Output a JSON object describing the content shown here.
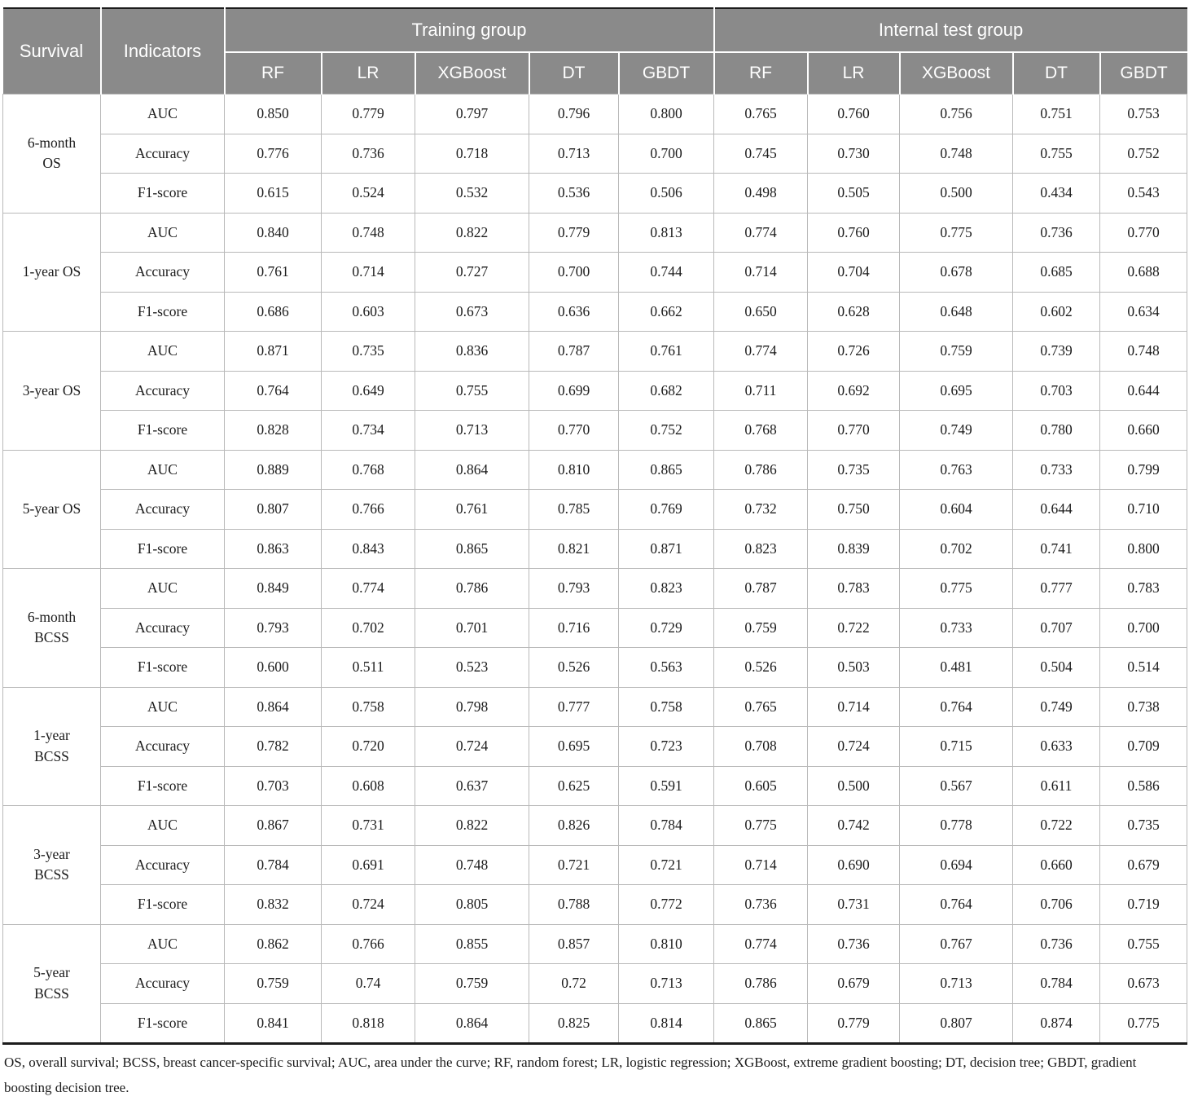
{
  "table": {
    "header": {
      "survival": "Survival",
      "indicators": "Indicators",
      "training_group": "Training group",
      "test_group": "Internal test group",
      "models": [
        "RF",
        "LR",
        "XGBoost",
        "DT",
        "GBDT"
      ]
    },
    "groups": [
      {
        "survival": "6-month\nOS",
        "rows": [
          {
            "indicator": "AUC",
            "training": [
              "0.850",
              "0.779",
              "0.797",
              "0.796",
              "0.800"
            ],
            "test": [
              "0.765",
              "0.760",
              "0.756",
              "0.751",
              "0.753"
            ]
          },
          {
            "indicator": "Accuracy",
            "training": [
              "0.776",
              "0.736",
              "0.718",
              "0.713",
              "0.700"
            ],
            "test": [
              "0.745",
              "0.730",
              "0.748",
              "0.755",
              "0.752"
            ]
          },
          {
            "indicator": "F1-score",
            "training": [
              "0.615",
              "0.524",
              "0.532",
              "0.536",
              "0.506"
            ],
            "test": [
              "0.498",
              "0.505",
              "0.500",
              "0.434",
              "0.543"
            ]
          }
        ]
      },
      {
        "survival": "1-year OS",
        "rows": [
          {
            "indicator": "AUC",
            "training": [
              "0.840",
              "0.748",
              "0.822",
              "0.779",
              "0.813"
            ],
            "test": [
              "0.774",
              "0.760",
              "0.775",
              "0.736",
              "0.770"
            ]
          },
          {
            "indicator": "Accuracy",
            "training": [
              "0.761",
              "0.714",
              "0.727",
              "0.700",
              "0.744"
            ],
            "test": [
              "0.714",
              "0.704",
              "0.678",
              "0.685",
              "0.688"
            ]
          },
          {
            "indicator": "F1-score",
            "training": [
              "0.686",
              "0.603",
              "0.673",
              "0.636",
              "0.662"
            ],
            "test": [
              "0.650",
              "0.628",
              "0.648",
              "0.602",
              "0.634"
            ]
          }
        ]
      },
      {
        "survival": "3-year OS",
        "rows": [
          {
            "indicator": "AUC",
            "training": [
              "0.871",
              "0.735",
              "0.836",
              "0.787",
              "0.761"
            ],
            "test": [
              "0.774",
              "0.726",
              "0.759",
              "0.739",
              "0.748"
            ]
          },
          {
            "indicator": "Accuracy",
            "training": [
              "0.764",
              "0.649",
              "0.755",
              "0.699",
              "0.682"
            ],
            "test": [
              "0.711",
              "0.692",
              "0.695",
              "0.703",
              "0.644"
            ]
          },
          {
            "indicator": "F1-score",
            "training": [
              "0.828",
              "0.734",
              "0.713",
              "0.770",
              "0.752"
            ],
            "test": [
              "0.768",
              "0.770",
              "0.749",
              "0.780",
              "0.660"
            ]
          }
        ]
      },
      {
        "survival": "5-year OS",
        "rows": [
          {
            "indicator": "AUC",
            "training": [
              "0.889",
              "0.768",
              "0.864",
              "0.810",
              "0.865"
            ],
            "test": [
              "0.786",
              "0.735",
              "0.763",
              "0.733",
              "0.799"
            ]
          },
          {
            "indicator": "Accuracy",
            "training": [
              "0.807",
              "0.766",
              "0.761",
              "0.785",
              "0.769"
            ],
            "test": [
              "0.732",
              "0.750",
              "0.604",
              "0.644",
              "0.710"
            ]
          },
          {
            "indicator": "F1-score",
            "training": [
              "0.863",
              "0.843",
              "0.865",
              "0.821",
              "0.871"
            ],
            "test": [
              "0.823",
              "0.839",
              "0.702",
              "0.741",
              "0.800"
            ]
          }
        ]
      },
      {
        "survival": "6-month\nBCSS",
        "rows": [
          {
            "indicator": "AUC",
            "training": [
              "0.849",
              "0.774",
              "0.786",
              "0.793",
              "0.823"
            ],
            "test": [
              "0.787",
              "0.783",
              "0.775",
              "0.777",
              "0.783"
            ]
          },
          {
            "indicator": "Accuracy",
            "training": [
              "0.793",
              "0.702",
              "0.701",
              "0.716",
              "0.729"
            ],
            "test": [
              "0.759",
              "0.722",
              "0.733",
              "0.707",
              "0.700"
            ]
          },
          {
            "indicator": "F1-score",
            "training": [
              "0.600",
              "0.511",
              "0.523",
              "0.526",
              "0.563"
            ],
            "test": [
              "0.526",
              "0.503",
              "0.481",
              "0.504",
              "0.514"
            ]
          }
        ]
      },
      {
        "survival": "1-year\nBCSS",
        "rows": [
          {
            "indicator": "AUC",
            "training": [
              "0.864",
              "0.758",
              "0.798",
              "0.777",
              "0.758"
            ],
            "test": [
              "0.765",
              "0.714",
              "0.764",
              "0.749",
              "0.738"
            ]
          },
          {
            "indicator": "Accuracy",
            "training": [
              "0.782",
              "0.720",
              "0.724",
              "0.695",
              "0.723"
            ],
            "test": [
              "0.708",
              "0.724",
              "0.715",
              "0.633",
              "0.709"
            ]
          },
          {
            "indicator": "F1-score",
            "training": [
              "0.703",
              "0.608",
              "0.637",
              "0.625",
              "0.591"
            ],
            "test": [
              "0.605",
              "0.500",
              "0.567",
              "0.611",
              "0.586"
            ]
          }
        ]
      },
      {
        "survival": "3-year\nBCSS",
        "rows": [
          {
            "indicator": "AUC",
            "training": [
              "0.867",
              "0.731",
              "0.822",
              "0.826",
              "0.784"
            ],
            "test": [
              "0.775",
              "0.742",
              "0.778",
              "0.722",
              "0.735"
            ]
          },
          {
            "indicator": "Accuracy",
            "training": [
              "0.784",
              "0.691",
              "0.748",
              "0.721",
              "0.721"
            ],
            "test": [
              "0.714",
              "0.690",
              "0.694",
              "0.660",
              "0.679"
            ]
          },
          {
            "indicator": "F1-score",
            "training": [
              "0.832",
              "0.724",
              "0.805",
              "0.788",
              "0.772"
            ],
            "test": [
              "0.736",
              "0.731",
              "0.764",
              "0.706",
              "0.719"
            ]
          }
        ]
      },
      {
        "survival": "5-year\nBCSS",
        "rows": [
          {
            "indicator": "AUC",
            "training": [
              "0.862",
              "0.766",
              "0.855",
              "0.857",
              "0.810"
            ],
            "test": [
              "0.774",
              "0.736",
              "0.767",
              "0.736",
              "0.755"
            ]
          },
          {
            "indicator": "Accuracy",
            "training": [
              "0.759",
              "0.74",
              "0.759",
              "0.72",
              "0.713"
            ],
            "test": [
              "0.786",
              "0.679",
              "0.713",
              "0.784",
              "0.673"
            ]
          },
          {
            "indicator": "F1-score",
            "training": [
              "0.841",
              "0.818",
              "0.864",
              "0.825",
              "0.814"
            ],
            "test": [
              "0.865",
              "0.779",
              "0.807",
              "0.874",
              "0.775"
            ]
          }
        ]
      }
    ],
    "footnote": "OS, overall survival; BCSS, breast cancer-specific survival; AUC, area under the curve; RF, random forest; LR, logistic regression; XGBoost, extreme gradient boosting; DT, decision tree; GBDT, gradient boosting decision tree.",
    "colors": {
      "header_bg": "#8a8a8a",
      "header_text": "#ffffff",
      "body_border": "#b9b9b9",
      "heavy_border": "#1c1c1c"
    }
  }
}
